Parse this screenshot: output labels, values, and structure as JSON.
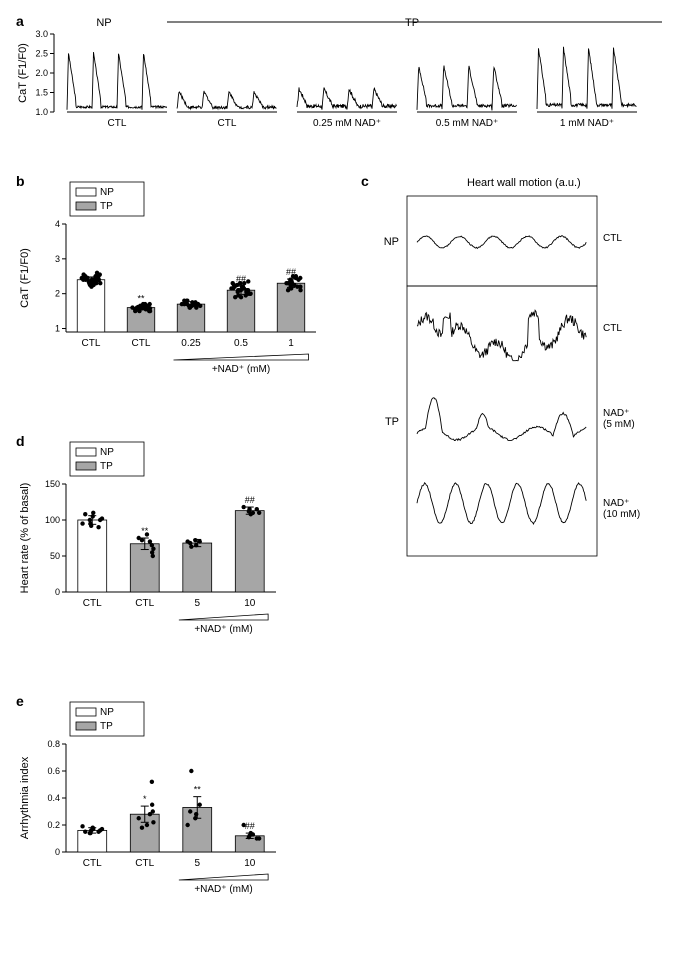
{
  "panel_a": {
    "label": "a",
    "group_labels": {
      "np": "NP",
      "tp": "TP"
    },
    "ylabel": "CaT (F1/F0)",
    "yticks": [
      1.0,
      1.5,
      2.0,
      2.5,
      3.0
    ],
    "ylim": [
      1.0,
      3.0
    ],
    "traces": [
      {
        "label": "CTL",
        "group": "NP",
        "pattern": "np_ctl"
      },
      {
        "label": "CTL",
        "group": "TP",
        "pattern": "tp_ctl"
      },
      {
        "label": "0.25 mM NAD⁺",
        "group": "TP",
        "pattern": "tp_025"
      },
      {
        "label": "0.5 mM NAD⁺",
        "group": "TP",
        "pattern": "tp_05"
      },
      {
        "label": "1 mM NAD⁺",
        "group": "TP",
        "pattern": "tp_1"
      }
    ]
  },
  "panel_b": {
    "label": "b",
    "ylabel": "CaT (F1/F0)",
    "yticks": [
      1,
      2,
      3,
      4
    ],
    "ylim": [
      0.9,
      4
    ],
    "legend": {
      "np": "NP",
      "tp": "TP"
    },
    "wedge_label": "+NAD⁺ (mM)",
    "bars": [
      {
        "cat": "CTL",
        "group": "NP",
        "mean": 2.4,
        "err": 0.08,
        "sig": "",
        "points": [
          2.3,
          2.5,
          2.2,
          2.6,
          2.4,
          2.35,
          2.45,
          2.5,
          2.3,
          2.25,
          2.55,
          2.4,
          2.35,
          2.45,
          2.4,
          2.3,
          2.5,
          2.35,
          2.4,
          2.45,
          2.5,
          2.3,
          2.4,
          2.5,
          2.35,
          2.4,
          2.25,
          2.55,
          2.4,
          2.5,
          2.35,
          2.4,
          2.45,
          2.3,
          2.5
        ]
      },
      {
        "cat": "CTL",
        "group": "TP",
        "mean": 1.6,
        "err": 0.06,
        "sig": "**",
        "points": [
          1.5,
          1.6,
          1.55,
          1.7,
          1.65,
          1.5,
          1.58,
          1.62,
          1.6,
          1.55,
          1.65,
          1.7,
          1.5,
          1.6,
          1.55,
          1.65,
          1.62,
          1.58,
          1.6,
          1.55,
          1.65,
          1.6,
          1.7,
          1.5,
          1.55,
          1.65,
          1.6,
          1.58,
          1.62
        ]
      },
      {
        "cat": "0.25",
        "group": "TP",
        "mean": 1.7,
        "err": 0.07,
        "sig": "",
        "points": [
          1.6,
          1.7,
          1.75,
          1.65,
          1.8,
          1.7,
          1.6,
          1.75,
          1.7,
          1.65,
          1.8,
          1.7,
          1.6,
          1.75,
          1.7,
          1.65,
          1.8,
          1.7
        ]
      },
      {
        "cat": "0.5",
        "group": "TP",
        "mean": 2.1,
        "err": 0.12,
        "sig": "##",
        "points": [
          2.0,
          2.1,
          2.2,
          1.9,
          2.3,
          2.0,
          2.15,
          2.05,
          2.25,
          1.95,
          2.35,
          2.1,
          2.0,
          2.2,
          2.1,
          1.9,
          2.3,
          2.05,
          2.15,
          2.0,
          2.25,
          2.1,
          1.95,
          2.3,
          2.05,
          2.2,
          2.1,
          2.0,
          2.15
        ]
      },
      {
        "cat": "1",
        "group": "TP",
        "mean": 2.3,
        "err": 0.12,
        "sig": "##",
        "points": [
          2.2,
          2.3,
          2.4,
          2.1,
          2.5,
          2.25,
          2.35,
          2.2,
          2.45,
          2.15,
          2.4,
          2.3,
          2.1,
          2.5,
          2.25,
          2.35,
          2.2,
          2.45,
          2.3
        ]
      }
    ]
  },
  "panel_c": {
    "label": "c",
    "title": "Heart wall motion (a.u.)",
    "np_label": "NP",
    "tp_label": "TP",
    "traces": [
      {
        "label": "CTL",
        "group": "NP",
        "pattern": "hw_np_ctl"
      },
      {
        "label": "CTL",
        "group": "TP",
        "pattern": "hw_tp_ctl"
      },
      {
        "label": "NAD⁺\n(5 mM)",
        "group": "TP",
        "pattern": "hw_tp_5"
      },
      {
        "label": "NAD⁺\n(10 mM)",
        "group": "TP",
        "pattern": "hw_tp_10"
      }
    ]
  },
  "panel_d": {
    "label": "d",
    "ylabel": "Heart rate (% of basal)",
    "yticks": [
      0,
      50,
      100,
      150
    ],
    "ylim": [
      0,
      150
    ],
    "legend": {
      "np": "NP",
      "tp": "TP"
    },
    "wedge_label": "+NAD⁺ (mM)",
    "bars": [
      {
        "cat": "CTL",
        "group": "NP",
        "mean": 100,
        "err": 6,
        "sig": "",
        "points": [
          95,
          100,
          105,
          90,
          110,
          100,
          95,
          108,
          102,
          92
        ]
      },
      {
        "cat": "CTL",
        "group": "TP",
        "mean": 67,
        "err": 8,
        "sig": "**",
        "points": [
          60,
          70,
          55,
          80,
          65,
          75,
          50,
          72
        ]
      },
      {
        "cat": "5",
        "group": "TP",
        "mean": 68,
        "err": 5,
        "sig": "",
        "points": [
          65,
          70,
          63,
          72,
          68,
          70
        ]
      },
      {
        "cat": "10",
        "group": "TP",
        "mean": 113,
        "err": 5,
        "sig": "##",
        "points": [
          110,
          115,
          108,
          118,
          112,
          115,
          110
        ]
      }
    ]
  },
  "panel_e": {
    "label": "e",
    "ylabel": "Arrhythmia index",
    "yticks": [
      0,
      0.2,
      0.4,
      0.6,
      0.8
    ],
    "ylim": [
      0,
      0.8
    ],
    "legend": {
      "np": "NP",
      "tp": "TP"
    },
    "wedge_label": "+NAD⁺ (mM)",
    "bars": [
      {
        "cat": "CTL",
        "group": "NP",
        "mean": 0.16,
        "err": 0.02,
        "sig": "",
        "points": [
          0.14,
          0.16,
          0.18,
          0.15,
          0.17,
          0.14,
          0.19,
          0.15,
          0.17,
          0.16
        ]
      },
      {
        "cat": "CTL",
        "group": "TP",
        "mean": 0.28,
        "err": 0.06,
        "sig": "*",
        "points": [
          0.22,
          0.28,
          0.35,
          0.2,
          0.52,
          0.25,
          0.3,
          0.18
        ]
      },
      {
        "cat": "5",
        "group": "TP",
        "mean": 0.33,
        "err": 0.08,
        "sig": "**",
        "points": [
          0.28,
          0.35,
          0.6,
          0.25,
          0.3,
          0.2
        ]
      },
      {
        "cat": "10",
        "group": "TP",
        "mean": 0.12,
        "err": 0.02,
        "sig": "##",
        "points": [
          0.1,
          0.12,
          0.14,
          0.2,
          0.11,
          0.1,
          0.13
        ]
      }
    ]
  },
  "style": {
    "bar_width": 0.55,
    "np_color": "#ffffff",
    "tp_color": "#a6a6a6",
    "point_color": "#000000",
    "point_radius": 2.2,
    "axis_color": "#000000",
    "trace_color": "#000000",
    "trace_width": 0.9,
    "error_cap": 4
  }
}
